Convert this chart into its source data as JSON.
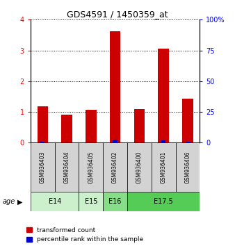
{
  "title": "GDS4591 / 1450359_at",
  "samples": [
    "GSM936403",
    "GSM936404",
    "GSM936405",
    "GSM936402",
    "GSM936400",
    "GSM936401",
    "GSM936406"
  ],
  "transformed_count": [
    1.18,
    0.9,
    1.08,
    3.62,
    1.1,
    3.06,
    1.42
  ],
  "percentile_rank": [
    0.48,
    0.38,
    0.44,
    2.2,
    0.44,
    1.94,
    0.82
  ],
  "age_groups": [
    {
      "label": "E14",
      "start": 0,
      "end": 1,
      "color": "#ccf0cc"
    },
    {
      "label": "E15",
      "start": 2,
      "end": 2,
      "color": "#ccf0cc"
    },
    {
      "label": "E16",
      "start": 3,
      "end": 3,
      "color": "#88dd88"
    },
    {
      "label": "E17.5",
      "start": 4,
      "end": 6,
      "color": "#55cc55"
    }
  ],
  "bar_color_red": "#cc0000",
  "bar_color_blue": "#0000cc",
  "ylim": [
    0,
    4
  ],
  "y2lim": [
    0,
    100
  ],
  "yticks": [
    0,
    1,
    2,
    3,
    4
  ],
  "y2ticks": [
    0,
    25,
    50,
    75,
    100
  ],
  "y2ticklabels": [
    "0",
    "25",
    "50",
    "75",
    "100%"
  ],
  "legend_red": "transformed count",
  "legend_blue": "percentile rank within the sample",
  "bar_width": 0.45,
  "sample_bg_color": "#d3d3d3",
  "age_label": "age"
}
